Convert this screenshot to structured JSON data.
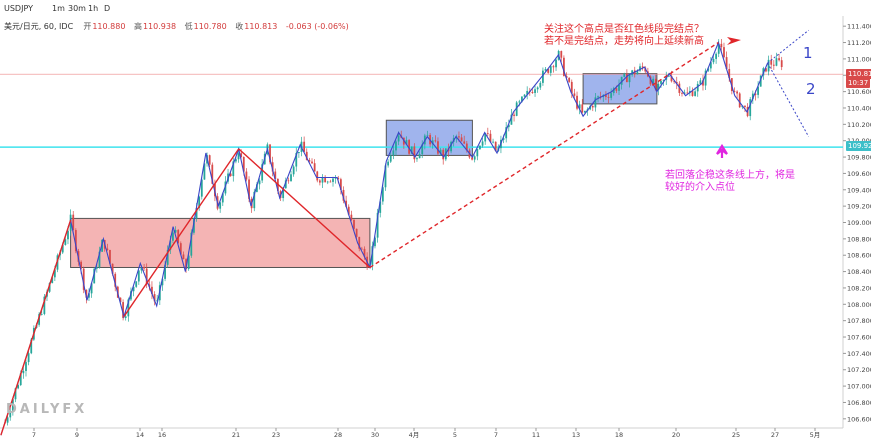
{
  "toolbar": {
    "symbol": "USDJPY",
    "timeframes": [
      "1m",
      "30m",
      "1h",
      "D"
    ]
  },
  "legend": {
    "name": "美元/日元, 60, IDC",
    "open_label": "开",
    "open": "110.880",
    "high_label": "高",
    "high": "110.938",
    "low_label": "低",
    "low": "110.780",
    "close_label": "收",
    "close": "110.813",
    "change": "-0.063 (-0.06%)"
  },
  "annotations": {
    "top_line1": "关注这个高点是否红色线段完结点？",
    "top_line2": "若不是完结点，走势将向上延续新高",
    "mid_line1": "若回落企稳这条线上方，将是",
    "mid_line2": "较好的介入点位",
    "wave1": "1",
    "wave2": "2",
    "logo": "DAILYFX"
  },
  "price_tags": {
    "last": "110.813",
    "countdown": "10:37",
    "level": "109.922"
  },
  "colors": {
    "bull": "#26a69a",
    "bear": "#d84a4a",
    "red_zone": "#f2a7a7",
    "blue_zone": "#8fa7ea",
    "wave_line": "#3a46c8",
    "trend": "#e0262a",
    "cyan_line": "#3de3ee",
    "magenta": "#e026e0"
  },
  "chart_data": {
    "type": "candlestick",
    "symbol": "USDJPY",
    "interval": "60",
    "source": "IDC",
    "ylim": [
      106.5,
      111.5
    ],
    "y_ticks": [
      "111.400",
      "111.200",
      "111.000",
      "110.800",
      "110.600",
      "110.400",
      "110.200",
      "110.000",
      "109.800",
      "109.600",
      "109.400",
      "109.200",
      "109.000",
      "108.800",
      "108.600",
      "108.400",
      "108.200",
      "108.000",
      "107.800",
      "107.600",
      "107.400",
      "107.200",
      "107.000",
      "106.800",
      "106.600"
    ],
    "x_ticks": [
      "7",
      "9",
      "14",
      "16",
      "21",
      "23",
      "28",
      "30",
      "4月",
      "5",
      "7",
      "11",
      "13",
      "18",
      "20",
      "25",
      "27",
      "5月"
    ],
    "wave_path": [
      [
        -0.5,
        106.4
      ],
      [
        8,
        109.03
      ],
      [
        10,
        108.05
      ],
      [
        12,
        108.8
      ],
      [
        14.5,
        107.85
      ],
      [
        16.5,
        108.5
      ],
      [
        18.5,
        107.98
      ],
      [
        20.5,
        108.95
      ],
      [
        22,
        108.4
      ],
      [
        24.5,
        109.85
      ],
      [
        26,
        109.2
      ],
      [
        28.5,
        109.9
      ],
      [
        30,
        109.2
      ],
      [
        32,
        109.9
      ],
      [
        33.5,
        109.3
      ],
      [
        36,
        109.95
      ],
      [
        38,
        109.55
      ],
      [
        40.5,
        109.55
      ],
      [
        43,
        108.75
      ],
      [
        44.5,
        108.45
      ],
      [
        46.5,
        109.75
      ],
      [
        48,
        110.1
      ],
      [
        50,
        109.8
      ],
      [
        51.5,
        110.05
      ],
      [
        53.5,
        109.8
      ],
      [
        55,
        110.05
      ],
      [
        57,
        109.8
      ],
      [
        58.5,
        110.1
      ],
      [
        60,
        109.85
      ],
      [
        62,
        110.35
      ],
      [
        64,
        110.6
      ],
      [
        66,
        110.85
      ],
      [
        67.5,
        111.05
      ],
      [
        69,
        110.6
      ],
      [
        70.5,
        110.3
      ],
      [
        72,
        110.5
      ],
      [
        74,
        110.6
      ],
      [
        76,
        110.8
      ],
      [
        78,
        110.9
      ],
      [
        79.5,
        110.6
      ],
      [
        81,
        110.82
      ],
      [
        83,
        110.55
      ],
      [
        85,
        110.7
      ],
      [
        87,
        111.2
      ],
      [
        89,
        110.55
      ],
      [
        90.5,
        110.35
      ],
      [
        93,
        110.95
      ]
    ],
    "forecast_paths": [
      [
        [
          93,
          110.95
        ],
        [
          95.5,
          111.15
        ],
        [
          98,
          111.35
        ]
      ],
      [
        [
          93,
          110.95
        ],
        [
          95.5,
          110.5
        ],
        [
          98,
          110.05
        ]
      ]
    ],
    "boxes": [
      {
        "color": "red",
        "x": [
          8,
          44.5
        ],
        "y": [
          108.45,
          109.05
        ]
      },
      {
        "color": "blue",
        "x": [
          46.5,
          57
        ],
        "y": [
          109.82,
          110.25
        ]
      },
      {
        "color": "blue",
        "x": [
          70.5,
          79.5
        ],
        "y": [
          110.45,
          110.82
        ]
      }
    ],
    "trend_lines": [
      {
        "style": "solid",
        "points": [
          [
            -0.5,
            106.4
          ],
          [
            8,
            109.03
          ]
        ]
      },
      {
        "style": "solid",
        "points": [
          [
            14.5,
            107.85
          ],
          [
            28.5,
            109.9
          ]
        ]
      },
      {
        "style": "solid",
        "points": [
          [
            28.5,
            109.9
          ],
          [
            44.5,
            108.45
          ]
        ]
      },
      {
        "style": "dashed",
        "points": [
          [
            44.5,
            108.45
          ],
          [
            87,
            111.2
          ]
        ]
      }
    ],
    "horizontal_levels": [
      109.922,
      110.813
    ]
  }
}
